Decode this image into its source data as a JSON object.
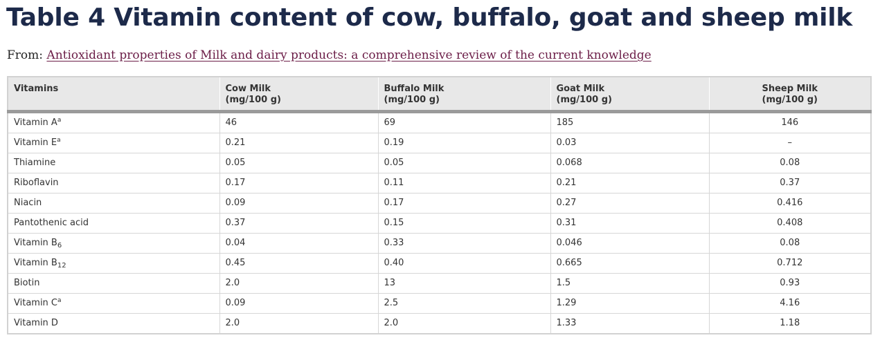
{
  "title": "Table 4 Vitamin content of cow, buffalo, goat and sheep milk",
  "source": {
    "prefix": "From: ",
    "link_text": "Antioxidant properties of Milk and dairy products: a comprehensive review of the current knowledge"
  },
  "colors": {
    "title": "#1d2a4a",
    "link": "#6b1d47",
    "header_bg": "#e8e8e8",
    "header_rule": "#9a9a9a"
  },
  "table": {
    "headers": [
      {
        "line1": "Vitamins",
        "line2": ""
      },
      {
        "line1": "Cow Milk",
        "line2": "(mg/100 g)"
      },
      {
        "line1": "Buffalo Milk",
        "line2": "(mg/100 g)"
      },
      {
        "line1": "Goat Milk",
        "line2": "(mg/100 g)"
      },
      {
        "line1": "Sheep Milk",
        "line2": "(mg/100 g)"
      }
    ],
    "rows": [
      {
        "name": "Vitamin A",
        "sub": "",
        "sup": "a",
        "values": [
          "46",
          "69",
          "185",
          "146"
        ]
      },
      {
        "name": "Vitamin E",
        "sub": "",
        "sup": "a",
        "values": [
          "0.21",
          "0.19",
          "0.03",
          "–"
        ]
      },
      {
        "name": "Thiamine",
        "sub": "",
        "sup": "",
        "values": [
          "0.05",
          "0.05",
          "0.068",
          "0.08"
        ]
      },
      {
        "name": "Riboflavin",
        "sub": "",
        "sup": "",
        "values": [
          "0.17",
          "0.11",
          "0.21",
          "0.37"
        ]
      },
      {
        "name": "Niacin",
        "sub": "",
        "sup": "",
        "values": [
          "0.09",
          "0.17",
          "0.27",
          "0.416"
        ]
      },
      {
        "name": "Pantothenic acid",
        "sub": "",
        "sup": "",
        "values": [
          "0.37",
          "0.15",
          "0.31",
          "0.408"
        ]
      },
      {
        "name": "Vitamin B",
        "sub": "6",
        "sup": "",
        "values": [
          "0.04",
          "0.33",
          "0.046",
          "0.08"
        ]
      },
      {
        "name": "Vitamin B",
        "sub": "12",
        "sup": "",
        "values": [
          "0.45",
          "0.40",
          "0.665",
          "0.712"
        ]
      },
      {
        "name": "Biotin",
        "sub": "",
        "sup": "",
        "values": [
          "2.0",
          "13",
          "1.5",
          "0.93"
        ]
      },
      {
        "name": "Vitamin C",
        "sub": "",
        "sup": "a",
        "values": [
          "0.09",
          "2.5",
          "1.29",
          "4.16"
        ]
      },
      {
        "name": "Vitamin D",
        "sub": "",
        "sup": "",
        "values": [
          "2.0",
          "2.0",
          "1.33",
          "1.18"
        ]
      }
    ]
  }
}
